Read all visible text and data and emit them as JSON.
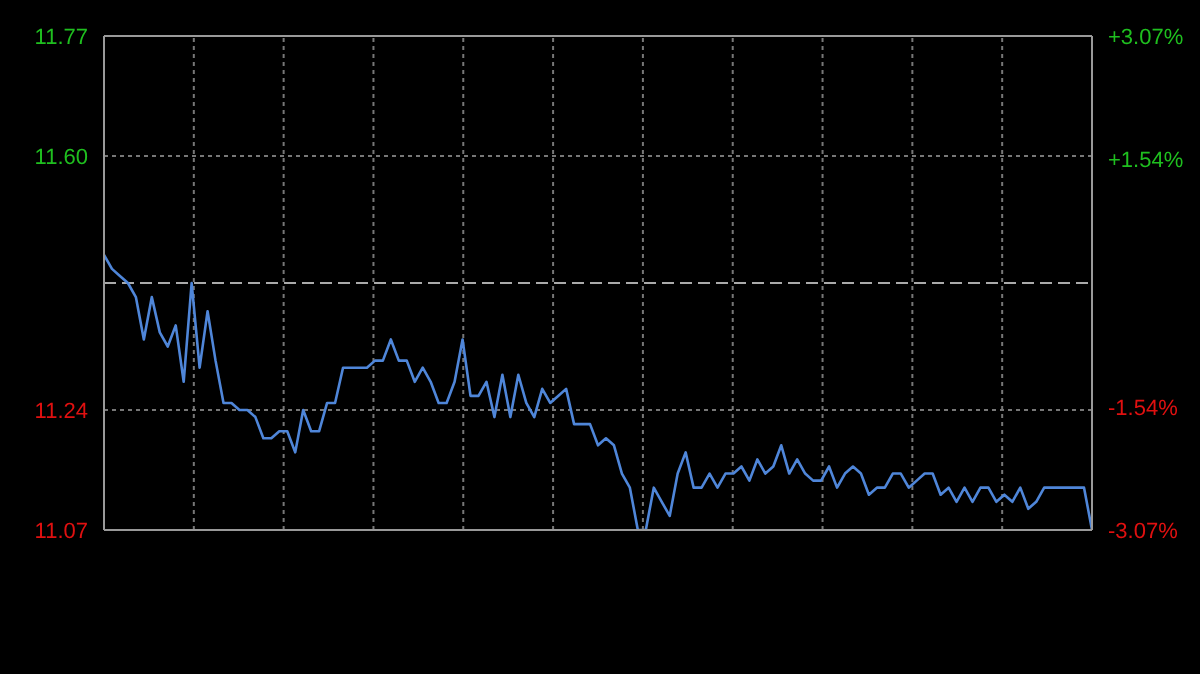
{
  "chart_data": {
    "type": "line",
    "categories": [
      null,
      null,
      null,
      null,
      null,
      null,
      null,
      null,
      null,
      null,
      null,
      null,
      null,
      null,
      null,
      null,
      null,
      null,
      null,
      null,
      null,
      null,
      null,
      null,
      null,
      null,
      null,
      null,
      null,
      null,
      null,
      null,
      null,
      null,
      null,
      null,
      null,
      null,
      null,
      null,
      null,
      null,
      null,
      null,
      null,
      null,
      null,
      null,
      null,
      null,
      null,
      null,
      null,
      null,
      null,
      null,
      null,
      null,
      null,
      null,
      null,
      null,
      null,
      null,
      null,
      null,
      null,
      null,
      null,
      null,
      null,
      null,
      null,
      null,
      null,
      null,
      null,
      null,
      null,
      null,
      null,
      null,
      null,
      null,
      null,
      null,
      null,
      null,
      null,
      null,
      null,
      null,
      null,
      null,
      null,
      null,
      null,
      null,
      null,
      null,
      null,
      null,
      null,
      null,
      null,
      null,
      null,
      null,
      null,
      null,
      null,
      null,
      null,
      null,
      null,
      null,
      null,
      null,
      null,
      null,
      null,
      null,
      null,
      null,
      null
    ],
    "series": [
      {
        "color": "#4f86d9",
        "values": [
          11.46,
          11.44,
          11.43,
          11.42,
          11.4,
          11.34,
          11.4,
          11.35,
          11.33,
          11.36,
          11.28,
          11.42,
          11.3,
          11.38,
          11.31,
          11.25,
          11.25,
          11.24,
          11.24,
          11.23,
          11.2,
          11.2,
          11.21,
          11.21,
          11.18,
          11.24,
          11.21,
          11.21,
          11.25,
          11.25,
          11.3,
          11.3,
          11.3,
          11.3,
          11.31,
          11.31,
          11.34,
          11.31,
          11.31,
          11.28,
          11.3,
          11.28,
          11.25,
          11.25,
          11.28,
          11.34,
          11.26,
          11.26,
          11.28,
          11.23,
          11.29,
          11.23,
          11.29,
          11.25,
          11.23,
          11.27,
          11.25,
          11.26,
          11.27,
          11.22,
          11.22,
          11.22,
          11.19,
          11.2,
          11.19,
          11.15,
          11.13,
          11.07,
          11.07,
          11.13,
          11.11,
          11.09,
          11.15,
          11.18,
          11.13,
          11.13,
          11.15,
          11.13,
          11.15,
          11.15,
          11.16,
          11.14,
          11.17,
          11.15,
          11.16,
          11.19,
          11.15,
          11.17,
          11.15,
          11.14,
          11.14,
          11.16,
          11.13,
          11.15,
          11.16,
          11.15,
          11.12,
          11.13,
          11.13,
          11.15,
          11.15,
          11.13,
          11.14,
          11.15,
          11.15,
          11.12,
          11.13,
          11.11,
          11.13,
          11.11,
          11.13,
          11.13,
          11.11,
          11.12,
          11.11,
          11.13,
          11.1,
          11.11,
          11.13,
          11.13,
          11.13,
          11.13,
          11.13,
          11.13,
          11.07
        ]
      }
    ],
    "ylim": [
      11.07,
      11.77
    ],
    "yticks": [
      {
        "value": 11.07,
        "label": "11.07"
      },
      {
        "value": 11.24,
        "label": "11.24"
      },
      {
        "value": 11.6,
        "label": "11.60"
      },
      {
        "value": 11.77,
        "label": "11.77"
      }
    ],
    "y2lim": [
      -3.07,
      3.07
    ],
    "y2ticks": [
      {
        "value": -3.07,
        "label": "-3.07%"
      },
      {
        "value": -1.54,
        "label": "-1.54%"
      },
      {
        "value": 1.54,
        "label": "+1.54%"
      },
      {
        "value": 3.07,
        "label": "+3.07%"
      }
    ],
    "ref_lines": [
      {
        "axis": "y",
        "value": 11.42,
        "line_style": "dashed"
      }
    ],
    "grid": true,
    "marker": "none",
    "line_style": "solid"
  }
}
